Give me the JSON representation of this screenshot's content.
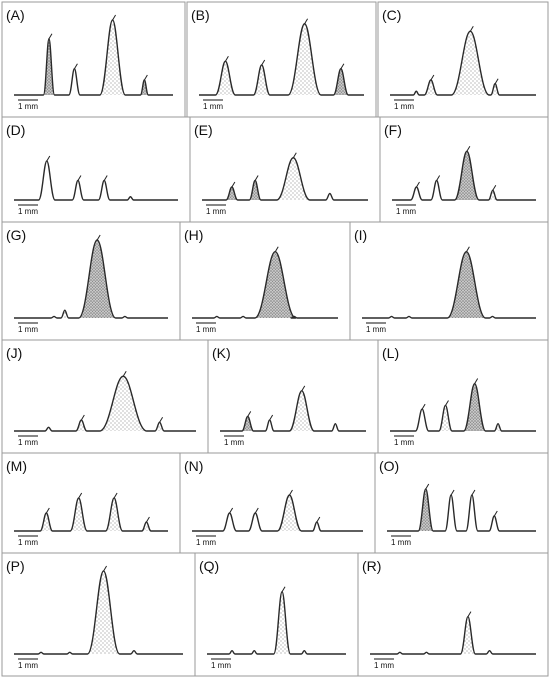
{
  "panels": [
    {
      "label": "(A)",
      "scale": "1 mm",
      "peaks": [
        {
          "h": 0.75,
          "w": 0.07,
          "fill": "dark"
        },
        {
          "h": 0.35,
          "w": 0.07,
          "fill": "none"
        },
        {
          "h": 1.0,
          "w": 0.16,
          "fill": "dots"
        },
        {
          "h": 0.2,
          "w": 0.05,
          "fill": "dark"
        }
      ]
    },
    {
      "label": "(B)",
      "scale": "1 mm",
      "peaks": [
        {
          "h": 0.45,
          "w": 0.12,
          "fill": "dots"
        },
        {
          "h": 0.4,
          "w": 0.1,
          "fill": "dots"
        },
        {
          "h": 0.95,
          "w": 0.2,
          "fill": "dots"
        },
        {
          "h": 0.35,
          "w": 0.09,
          "fill": "dark"
        }
      ]
    },
    {
      "label": "(C)",
      "scale": "1 mm",
      "peaks": [
        {
          "h": 0.05,
          "w": 0.04,
          "fill": "none"
        },
        {
          "h": 0.2,
          "w": 0.09,
          "fill": "dots"
        },
        {
          "h": 0.85,
          "w": 0.26,
          "fill": "dots"
        },
        {
          "h": 0.15,
          "w": 0.06,
          "fill": "dots"
        }
      ]
    },
    {
      "label": "(D)",
      "scale": "1 mm",
      "peaks": [
        {
          "h": 0.6,
          "w": 0.1,
          "fill": "none"
        },
        {
          "h": 0.3,
          "w": 0.07,
          "fill": "none"
        },
        {
          "h": 0.3,
          "w": 0.07,
          "fill": "none"
        },
        {
          "h": 0.05,
          "w": 0.04,
          "fill": "none"
        }
      ]
    },
    {
      "label": "(E)",
      "scale": "1 mm",
      "peaks": [
        {
          "h": 0.2,
          "w": 0.07,
          "fill": "dark"
        },
        {
          "h": 0.3,
          "w": 0.07,
          "fill": "dark"
        },
        {
          "h": 0.65,
          "w": 0.2,
          "fill": "dots"
        },
        {
          "h": 0.1,
          "w": 0.05,
          "fill": "none"
        }
      ]
    },
    {
      "label": "(F)",
      "scale": "1 mm",
      "peaks": [
        {
          "h": 0.2,
          "w": 0.08,
          "fill": "none"
        },
        {
          "h": 0.3,
          "w": 0.08,
          "fill": "none"
        },
        {
          "h": 0.75,
          "w": 0.17,
          "fill": "dark"
        },
        {
          "h": 0.15,
          "w": 0.06,
          "fill": "dots"
        }
      ]
    },
    {
      "label": "(G)",
      "scale": "1 mm",
      "peaks": [
        {
          "h": 0.02,
          "w": 0.03,
          "fill": "none"
        },
        {
          "h": 0.1,
          "w": 0.05,
          "fill": "dots"
        },
        {
          "h": 1.0,
          "w": 0.24,
          "fill": "dark"
        },
        {
          "h": 0.02,
          "w": 0.03,
          "fill": "none"
        }
      ]
    },
    {
      "label": "(H)",
      "scale": "1 mm",
      "peaks": [
        {
          "h": 0.02,
          "w": 0.03,
          "fill": "none"
        },
        {
          "h": 0.02,
          "w": 0.03,
          "fill": "none"
        },
        {
          "h": 0.85,
          "w": 0.28,
          "fill": "dark"
        },
        {
          "h": 0.02,
          "w": 0.03,
          "fill": "none"
        }
      ]
    },
    {
      "label": "(I)",
      "scale": "1 mm",
      "peaks": [
        {
          "h": 0.02,
          "w": 0.03,
          "fill": "none"
        },
        {
          "h": 0.02,
          "w": 0.03,
          "fill": "none"
        },
        {
          "h": 0.85,
          "w": 0.22,
          "fill": "dark"
        },
        {
          "h": 0.02,
          "w": 0.03,
          "fill": "none"
        }
      ]
    },
    {
      "label": "(J)",
      "scale": "1 mm",
      "peaks": [
        {
          "h": 0.05,
          "w": 0.04,
          "fill": "none"
        },
        {
          "h": 0.15,
          "w": 0.06,
          "fill": "dots"
        },
        {
          "h": 0.75,
          "w": 0.26,
          "fill": "dots"
        },
        {
          "h": 0.12,
          "w": 0.05,
          "fill": "dots"
        }
      ]
    },
    {
      "label": "(K)",
      "scale": "1 mm",
      "peaks": [
        {
          "h": 0.2,
          "w": 0.08,
          "fill": "dark"
        },
        {
          "h": 0.15,
          "w": 0.06,
          "fill": "none"
        },
        {
          "h": 0.55,
          "w": 0.17,
          "fill": "dots"
        },
        {
          "h": 0.1,
          "w": 0.05,
          "fill": "none"
        }
      ]
    },
    {
      "label": "(L)",
      "scale": "1 mm",
      "peaks": [
        {
          "h": 0.3,
          "w": 0.09,
          "fill": "none"
        },
        {
          "h": 0.35,
          "w": 0.09,
          "fill": "dots"
        },
        {
          "h": 0.65,
          "w": 0.15,
          "fill": "dark"
        },
        {
          "h": 0.1,
          "w": 0.05,
          "fill": "dots"
        }
      ]
    },
    {
      "label": "(M)",
      "scale": "1 mm",
      "peaks": [
        {
          "h": 0.3,
          "w": 0.08,
          "fill": "dots"
        },
        {
          "h": 0.55,
          "w": 0.11,
          "fill": "dots"
        },
        {
          "h": 0.55,
          "w": 0.11,
          "fill": "dots"
        },
        {
          "h": 0.15,
          "w": 0.06,
          "fill": "dots"
        }
      ]
    },
    {
      "label": "(N)",
      "scale": "1 mm",
      "peaks": [
        {
          "h": 0.3,
          "w": 0.08,
          "fill": "none"
        },
        {
          "h": 0.3,
          "w": 0.08,
          "fill": "none"
        },
        {
          "h": 0.6,
          "w": 0.14,
          "fill": "dots"
        },
        {
          "h": 0.15,
          "w": 0.05,
          "fill": "none"
        }
      ]
    },
    {
      "label": "(O)",
      "scale": "1 mm",
      "peaks": [
        {
          "h": 0.7,
          "w": 0.1,
          "fill": "dark"
        },
        {
          "h": 0.6,
          "w": 0.08,
          "fill": "none"
        },
        {
          "h": 0.6,
          "w": 0.08,
          "fill": "none"
        },
        {
          "h": 0.25,
          "w": 0.07,
          "fill": "none"
        }
      ]
    },
    {
      "label": "(P)",
      "scale": "1 mm",
      "peaks": [
        {
          "h": 0.02,
          "w": 0.03,
          "fill": "none"
        },
        {
          "h": 0.02,
          "w": 0.03,
          "fill": "none"
        },
        {
          "h": 1.0,
          "w": 0.19,
          "fill": "dots"
        },
        {
          "h": 0.04,
          "w": 0.04,
          "fill": "none"
        }
      ]
    },
    {
      "label": "(Q)",
      "scale": "1 mm",
      "peaks": [
        {
          "h": 0.04,
          "w": 0.04,
          "fill": "none"
        },
        {
          "h": 0.04,
          "w": 0.04,
          "fill": "none"
        },
        {
          "h": 0.75,
          "w": 0.12,
          "fill": "dots"
        },
        {
          "h": 0.04,
          "w": 0.04,
          "fill": "none"
        }
      ]
    },
    {
      "label": "(R)",
      "scale": "1 mm",
      "peaks": [
        {
          "h": 0.02,
          "w": 0.03,
          "fill": "none"
        },
        {
          "h": 0.02,
          "w": 0.03,
          "fill": "none"
        },
        {
          "h": 0.45,
          "w": 0.09,
          "fill": "dots"
        },
        {
          "h": 0.04,
          "w": 0.04,
          "fill": "none"
        }
      ]
    }
  ]
}
